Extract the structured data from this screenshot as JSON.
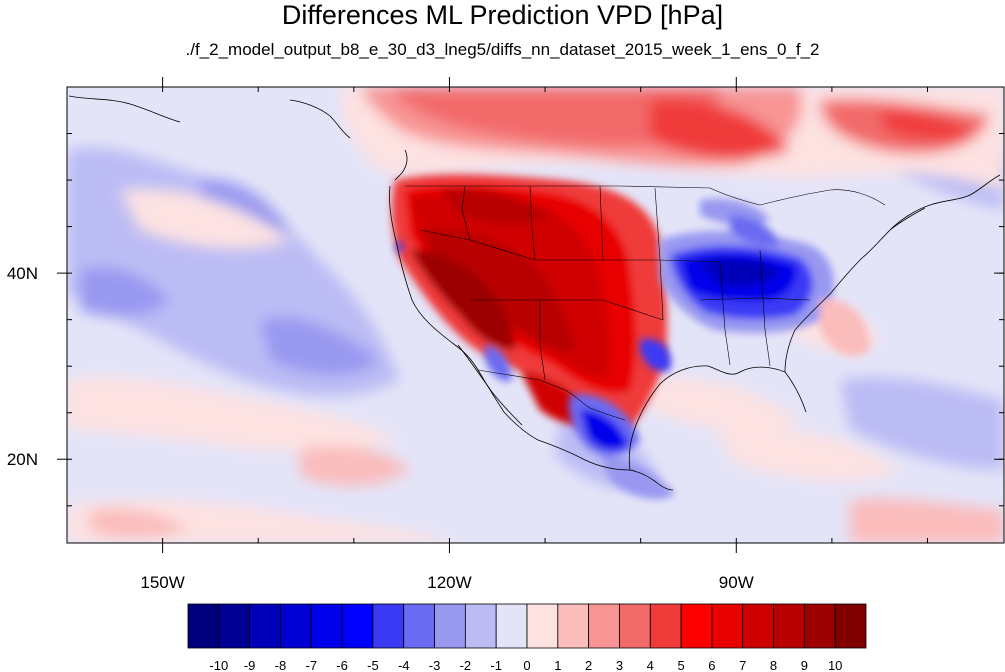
{
  "header": {
    "title": "Differences ML Prediction VPD [hPa]",
    "subtitle": "./f_2_model_output_b8_e_30_d3_lneg5/diffs_nn_dataset_2015_week_1_ens_0_f_2"
  },
  "map": {
    "projection": "cylindrical-equidistant",
    "lon_range": [
      -160,
      -62
    ],
    "lat_range": [
      11,
      60
    ],
    "lon_ticks": [
      {
        "value": -150,
        "label": "150W"
      },
      {
        "value": -120,
        "label": "120W"
      },
      {
        "value": -90,
        "label": "90W"
      }
    ],
    "lat_ticks": [
      {
        "value": 40,
        "label": "40N"
      },
      {
        "value": 20,
        "label": "20N"
      }
    ],
    "land_outline_color": "#000000"
  },
  "colorbar": {
    "labels": [
      "-10",
      "-9",
      "-8",
      "-7",
      "-6",
      "-5",
      "-4",
      "-3",
      "-2",
      "-1",
      "0",
      "1",
      "2",
      "3",
      "4",
      "5",
      "6",
      "7",
      "8",
      "9",
      "10"
    ],
    "colors": [
      "#00007f",
      "#000095",
      "#0000b8",
      "#0000d2",
      "#0000ea",
      "#0000ff",
      "#3a3af5",
      "#6a6af2",
      "#9898f1",
      "#bcbcf5",
      "#e4e4f8",
      "#fde2e2",
      "#fbbcbc",
      "#f89494",
      "#f26a6a",
      "#f03b3b",
      "#fe0000",
      "#e80000",
      "#d00000",
      "#b80000",
      "#9d0000",
      "#800000"
    ]
  }
}
